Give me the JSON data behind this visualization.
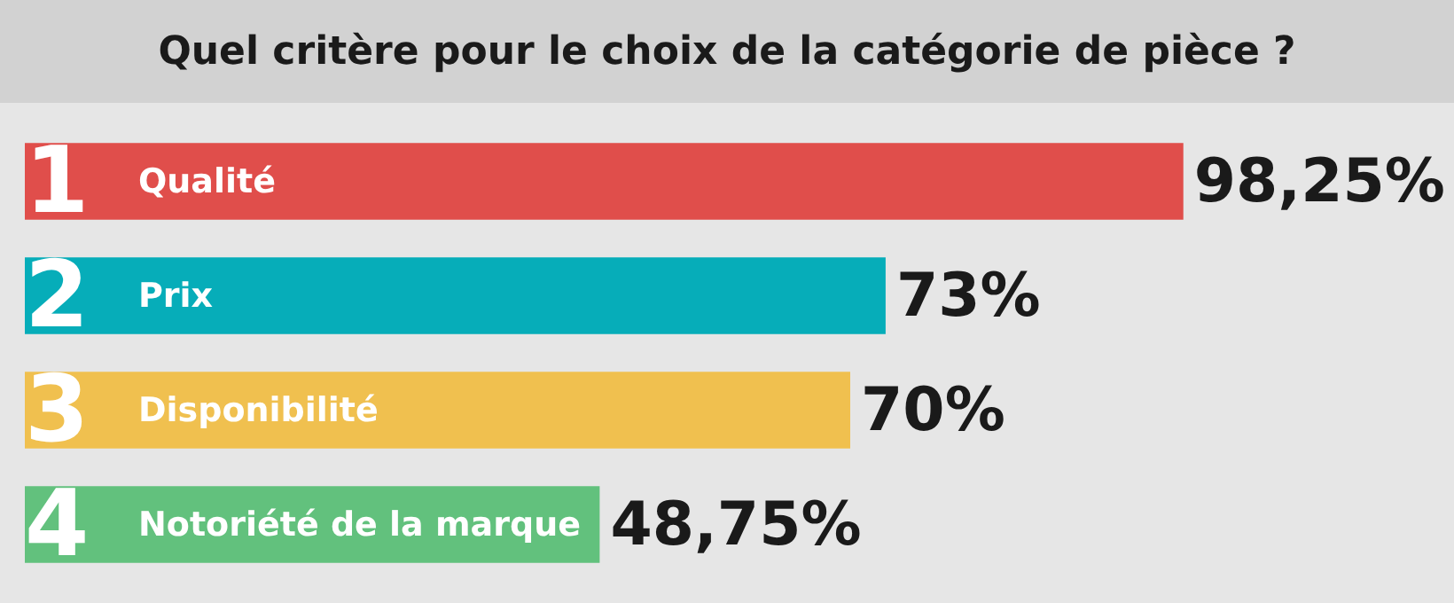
{
  "chart_data": {
    "type": "bar",
    "orientation": "horizontal",
    "title": "Quel critère pour le choix de la catégorie de pièce ?",
    "categories": [
      "Qualité",
      "Prix",
      "Disponibilité",
      "Notoriété de la marque"
    ],
    "values": [
      98.25,
      73,
      70,
      48.75
    ],
    "value_labels": [
      "98,25%",
      "73%",
      "70%",
      "48,75%"
    ],
    "colors": [
      "#e04e4b",
      "#06adb9",
      "#f0c04f",
      "#62c17d"
    ],
    "annotations": [
      "1",
      "2",
      "3",
      "4"
    ]
  }
}
